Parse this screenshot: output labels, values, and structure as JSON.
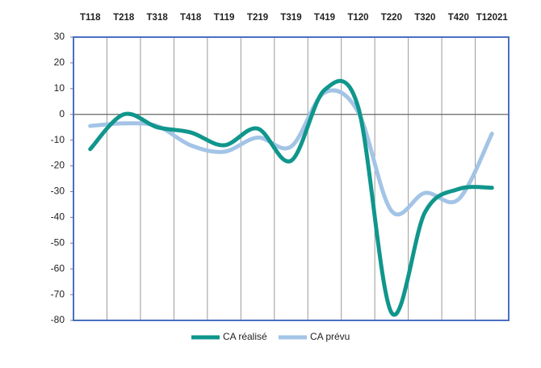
{
  "chart_data": {
    "type": "line",
    "categories": [
      "T118",
      "T218",
      "T318",
      "T418",
      "T119",
      "T219",
      "T319",
      "T419",
      "T120",
      "T220",
      "T320",
      "T420",
      "T12021"
    ],
    "series": [
      {
        "name": "CA réalisé",
        "color": "#10968c",
        "values": [
          -13.5,
          0,
          -5,
          -7,
          -12,
          -5.5,
          -18,
          9.5,
          3,
          -77,
          -38,
          -29,
          -28.5
        ]
      },
      {
        "name": "CA prévu",
        "color": "#a3c4e6",
        "values": [
          -4.5,
          -3.5,
          -4.5,
          -12,
          -14.5,
          -9,
          -12.5,
          8.5,
          1,
          -37.5,
          -30.5,
          -33,
          -7.5
        ]
      }
    ],
    "ylim": [
      -80,
      30
    ],
    "yticks": [
      -80,
      -70,
      -60,
      -50,
      -40,
      -30,
      -20,
      -10,
      0,
      10,
      20,
      30
    ],
    "smooth": true
  }
}
